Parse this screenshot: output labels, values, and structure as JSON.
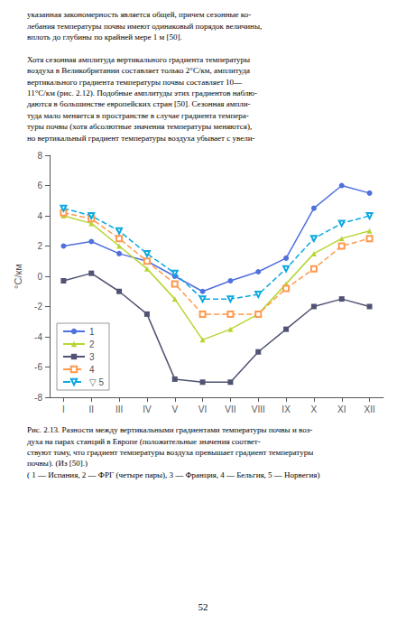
{
  "chart_data": {
    "type": "line",
    "categories": [
      "I",
      "II",
      "III",
      "IV",
      "V",
      "VI",
      "VII",
      "VIII",
      "IX",
      "X",
      "XI",
      "XII"
    ],
    "series": [
      {
        "name": "1",
        "values": [
          2.0,
          2.3,
          1.5,
          1.0,
          0.0,
          -1.0,
          -0.3,
          0.3,
          1.2,
          4.5,
          6.0,
          5.5
        ],
        "marker": "circle",
        "line_style": "solid"
      },
      {
        "name": "2",
        "values": [
          4.0,
          3.5,
          2.0,
          0.5,
          -1.5,
          -4.2,
          -3.5,
          -2.5,
          -0.5,
          1.5,
          2.5,
          3.0
        ],
        "marker": "triangle",
        "line_style": "solid"
      },
      {
        "name": "3",
        "values": [
          -0.3,
          0.2,
          -1.0,
          -2.5,
          -6.8,
          -7.0,
          -7.0,
          -5.0,
          -3.5,
          -2.0,
          -1.5,
          -2.0
        ],
        "marker": "square",
        "line_style": "solid"
      },
      {
        "name": "4",
        "values": [
          4.2,
          3.8,
          2.5,
          1.0,
          -0.5,
          -2.5,
          -2.5,
          -2.5,
          -0.8,
          0.5,
          2.0,
          2.5
        ],
        "marker": "open-square",
        "line_style": "dashed"
      },
      {
        "name": "▽ 5",
        "values": [
          4.5,
          4.0,
          3.0,
          1.5,
          0.2,
          -1.5,
          -1.5,
          -1.2,
          0.5,
          2.5,
          3.5,
          4.0
        ],
        "marker": "open-triangle-down",
        "line_style": "dashed"
      }
    ],
    "y_label": "°C/км",
    "ylim": [
      -8,
      8
    ],
    "yticks": [
      -8,
      -6,
      -4,
      -2,
      0,
      2,
      4,
      6,
      8
    ],
    "grid": false,
    "legend": "lower left",
    "annotations": [
      "указанная закономерность является общей, причем сезонные ко-\nлебания температуры почвы имеют одинаковый порядок величины,\nвплоть до глубины по крайней мере 1 м [50].\n\nХотя сезонная амплитуда вертикального градиента температуры\nвоздуха в Великобритании составляет только 2°С/км, амплитуда\nвертикального градиента температуры почвы составляет 10—\n11°С/км (рис. 2.12). Подобные амплитуды этих градиентов наблю-\nдаются в большинстве европейских стран [50]. Сезонная ампли-\nтуда мало меняется в пространстве в случае градиента темпера-\nтуры почвы (хотя абсолютные значения температуры меняются),\nно вертикальный градиент температуры воздуха убывает с увели-",
      "Рис. 2.13. Разности между вертикальными градиентами температуры почвы и воз-\nдуха на парах станций в Европе (положительные значения соответ-\nствуют тому, что градиент температуры воздуха превышает градиент температуры\nпочвы). (Из [50].)\n( 1 — Испания, 2 — ФРГ (четыре пары), 3 — Франция, 4 — Бельгия, 5 — Норвегия)",
      "52"
    ]
  }
}
